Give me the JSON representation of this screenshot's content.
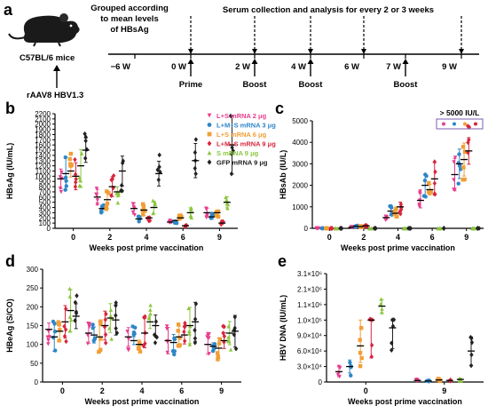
{
  "colors": {
    "pink": "#e83e8c",
    "blue": "#2e86c8",
    "orange": "#f29e36",
    "red": "#d7263d",
    "green": "#8cc63f",
    "black": "#222222"
  },
  "timeline": {
    "panel_label": "a",
    "mouse_label": "C57BL/6 mice",
    "vector_label": "rAAV8 HBV1.3",
    "group_text": "Grouped according to mean levels of HBsAg",
    "group_line1": "Grouped according",
    "group_line2": "to mean levels",
    "group_line3": "of HBsAg",
    "serum_text": "Serum collection and analysis for every 2 or 3 weeks",
    "week_labels": [
      "−6 W",
      "0 W",
      "2 W",
      "4 W",
      "6 W",
      "7 W",
      "9 W"
    ],
    "event_labels": [
      "Prime",
      "Boost",
      "Boost",
      "Boost"
    ]
  },
  "chart_data": [
    {
      "id": "b",
      "type": "scatter",
      "panel_label": "b",
      "ylabel": "HBsAg (IU/mL)",
      "xlabel": "Weeks post prime vaccination",
      "categories": [
        "0",
        "2",
        "4",
        "6",
        "9"
      ],
      "yticks": [
        0,
        100,
        200,
        300,
        400,
        500,
        600,
        700,
        800,
        900,
        1000,
        1100,
        1200,
        1300,
        1400,
        1500,
        1600,
        1700,
        1800,
        1900,
        2000,
        2100,
        2200
      ],
      "ylim": [
        0,
        2200
      ],
      "y_scale": "linear",
      "legend": {
        "placement": "right",
        "entries": [
          "L+S mRNA 2 μg",
          "L+M+S mRNA 3 μg",
          "L+S mRNA 6 μg",
          "L+M+S mRNA 9 μg",
          "S mRNA 9 μg",
          "GFP mRNA 9 μg"
        ]
      },
      "series_means": [
        {
          "name": "L+S mRNA 2 μg",
          "values": [
            950,
            600,
            380,
            120,
            300
          ]
        },
        {
          "name": "L+M+S mRNA 3 μg",
          "values": [
            1050,
            380,
            180,
            150,
            220
          ]
        },
        {
          "name": "L+S mRNA 6 μg",
          "values": [
            1100,
            550,
            350,
            200,
            300
          ]
        },
        {
          "name": "L+M+S mRNA 9 μg",
          "values": [
            1000,
            800,
            200,
            50,
            100
          ]
        },
        {
          "name": "S mRNA 9 μg",
          "values": [
            1200,
            700,
            400,
            300,
            500
          ]
        },
        {
          "name": "GFP mRNA 9 μg",
          "values": [
            1500,
            1100,
            1050,
            1300,
            1600
          ]
        }
      ]
    },
    {
      "id": "c",
      "type": "scatter",
      "panel_label": "c",
      "ylabel": "HBsAb (IU/L)",
      "xlabel": "Weeks post prime vaccination",
      "categories": [
        "0",
        "2",
        "4",
        "6",
        "9"
      ],
      "yticks": [
        0,
        1000,
        2000,
        3000,
        4000,
        5000
      ],
      "ylim": [
        0,
        5000
      ],
      "y_scale": "linear",
      "annotation": "> 5000 IU/L",
      "series_means": [
        {
          "name": "L+S mRNA 2 μg",
          "values": [
            0,
            50,
            500,
            1300,
            2500
          ]
        },
        {
          "name": "L+M+S mRNA 3 μg",
          "values": [
            0,
            100,
            800,
            2000,
            3000
          ]
        },
        {
          "name": "L+S mRNA 6 μg",
          "values": [
            0,
            80,
            700,
            1800,
            3200
          ]
        },
        {
          "name": "L+M+S mRNA 9 μg",
          "values": [
            0,
            120,
            1000,
            2300,
            3600
          ]
        },
        {
          "name": "S mRNA 9 μg",
          "values": [
            0,
            0,
            0,
            0,
            0
          ]
        },
        {
          "name": "GFP mRNA 9 μg",
          "values": [
            0,
            0,
            0,
            0,
            0
          ]
        }
      ]
    },
    {
      "id": "d",
      "type": "scatter",
      "panel_label": "d",
      "ylabel": "HBeAg (S/CO)",
      "xlabel": "Weeks post prime vaccination",
      "categories": [
        "0",
        "2",
        "4",
        "6",
        "9"
      ],
      "yticks": [
        0,
        50,
        100,
        150,
        200,
        250,
        300
      ],
      "ylim": [
        0,
        300
      ],
      "y_scale": "linear",
      "series_means": [
        {
          "name": "L+S mRNA 2 μg",
          "values": [
            140,
            130,
            120,
            110,
            100
          ]
        },
        {
          "name": "L+M+S mRNA 3 μg",
          "values": [
            120,
            125,
            110,
            105,
            95
          ]
        },
        {
          "name": "L+S mRNA 6 μg",
          "values": [
            135,
            120,
            100,
            120,
            90
          ]
        },
        {
          "name": "L+M+S mRNA 9 μg",
          "values": [
            160,
            150,
            130,
            125,
            110
          ]
        },
        {
          "name": "S mRNA 9 μg",
          "values": [
            190,
            170,
            160,
            150,
            130
          ]
        },
        {
          "name": "GFP mRNA 9 μg",
          "values": [
            175,
            165,
            150,
            160,
            135
          ]
        }
      ]
    },
    {
      "id": "e",
      "type": "scatter",
      "panel_label": "e",
      "ylabel": "HBV DNA (IU/mL)",
      "xlabel": "Weeks post prime vaccination",
      "categories": [
        "0",
        "9"
      ],
      "ytick_labels": [
        "0",
        "3.0×10⁴",
        "6.0×10⁴",
        "9.0×10⁴",
        "1.0×10⁵",
        "1.1×10⁶",
        "2.1×10⁶",
        "3.1×10⁶"
      ],
      "y_scale": "segmented",
      "series_means": [
        {
          "name": "L+S mRNA 2 μg",
          "values": [
            20000,
            3000
          ]
        },
        {
          "name": "L+M+S mRNA 3 μg",
          "values": [
            30000,
            2000
          ]
        },
        {
          "name": "L+S mRNA 6 μg",
          "values": [
            70000,
            4000
          ]
        },
        {
          "name": "L+M+S mRNA 9 μg",
          "values": [
            100000,
            3000
          ]
        },
        {
          "name": "S mRNA 9 μg",
          "values": [
            1000000,
            5000
          ]
        },
        {
          "name": "GFP mRNA 9 μg",
          "values": [
            95000,
            60000
          ]
        }
      ]
    }
  ]
}
